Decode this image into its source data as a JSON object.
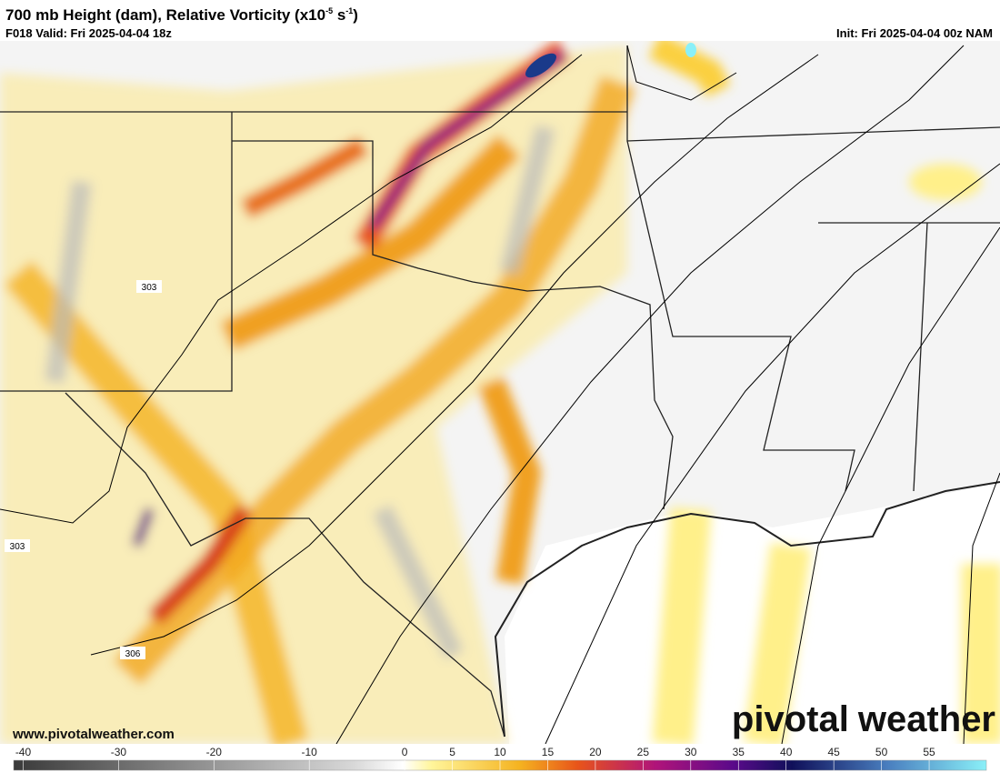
{
  "header": {
    "title_parts": [
      "700 mb Height (dam), Relative Vorticity (x10",
      "-5",
      " s",
      "-1",
      ")"
    ],
    "valid": "F018 Valid: Fri 2025-04-04 18z",
    "init": "Init: Fri 2025-04-04 00z NAM"
  },
  "map": {
    "contour_labels": [
      "303",
      "303",
      "306"
    ]
  },
  "colorbar": {
    "range": [
      -41,
      61
    ],
    "ticks": [
      -40,
      -30,
      -20,
      -10,
      0,
      5,
      10,
      15,
      20,
      25,
      30,
      35,
      40,
      45,
      50,
      55
    ]
  },
  "footer": {
    "website": "www.pivotalweather.com",
    "logo_left": "pivotal",
    "logo_right": "weather"
  }
}
